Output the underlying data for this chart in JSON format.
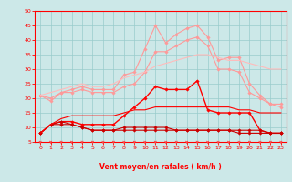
{
  "x": [
    0,
    1,
    2,
    3,
    4,
    5,
    6,
    7,
    8,
    9,
    10,
    11,
    12,
    13,
    14,
    15,
    16,
    17,
    18,
    19,
    20,
    21,
    22,
    23
  ],
  "series": [
    {
      "color": "#ff9999",
      "linewidth": 0.8,
      "marker": "D",
      "markersize": 1.8,
      "values": [
        21,
        20,
        22,
        23,
        24,
        23,
        23,
        23,
        28,
        29,
        37,
        45,
        39,
        42,
        44,
        45,
        41,
        33,
        34,
        34,
        25,
        21,
        18,
        18
      ]
    },
    {
      "color": "#ff9999",
      "linewidth": 0.8,
      "marker": "D",
      "markersize": 1.8,
      "values": [
        21,
        19,
        22,
        22,
        23,
        22,
        22,
        22,
        24,
        25,
        29,
        36,
        36,
        38,
        40,
        41,
        38,
        30,
        30,
        29,
        22,
        20,
        18,
        17
      ]
    },
    {
      "color": "#ffbbbb",
      "linewidth": 0.8,
      "marker": null,
      "markersize": 1.5,
      "values": [
        21,
        22,
        23,
        24,
        25,
        24,
        24,
        25,
        27,
        28,
        29,
        31,
        32,
        33,
        34,
        35,
        35,
        34,
        33,
        33,
        32,
        31,
        30,
        30
      ]
    },
    {
      "color": "#ff0000",
      "linewidth": 1.0,
      "marker": "D",
      "markersize": 1.8,
      "values": [
        8,
        11,
        12,
        12,
        11,
        11,
        11,
        11,
        14,
        17,
        20,
        24,
        23,
        23,
        23,
        26,
        16,
        15,
        15,
        15,
        15,
        9,
        8,
        8
      ]
    },
    {
      "color": "#cc0000",
      "linewidth": 0.8,
      "marker": "D",
      "markersize": 1.8,
      "values": [
        8,
        11,
        11,
        11,
        10,
        9,
        9,
        9,
        10,
        10,
        10,
        10,
        10,
        9,
        9,
        9,
        9,
        9,
        9,
        8,
        8,
        8,
        8,
        8
      ]
    },
    {
      "color": "#cc0000",
      "linewidth": 0.8,
      "marker": "D",
      "markersize": 1.8,
      "values": [
        8,
        11,
        12,
        11,
        10,
        9,
        9,
        9,
        9,
        9,
        9,
        9,
        9,
        9,
        9,
        9,
        9,
        9,
        9,
        9,
        9,
        9,
        8,
        8
      ]
    },
    {
      "color": "#ff0000",
      "linewidth": 0.8,
      "marker": null,
      "markersize": 1.5,
      "values": [
        8,
        11,
        13,
        14,
        14,
        14,
        14,
        14,
        15,
        16,
        16,
        17,
        17,
        17,
        17,
        17,
        17,
        17,
        17,
        16,
        16,
        15,
        15,
        15
      ]
    }
  ],
  "xlabel": "Vent moyen/en rafales ( km/h )",
  "xlim": [
    -0.5,
    23.5
  ],
  "ylim": [
    5,
    50
  ],
  "yticks": [
    5,
    10,
    15,
    20,
    25,
    30,
    35,
    40,
    45,
    50
  ],
  "xticks": [
    0,
    1,
    2,
    3,
    4,
    5,
    6,
    7,
    8,
    9,
    10,
    11,
    12,
    13,
    14,
    15,
    16,
    17,
    18,
    19,
    20,
    21,
    22,
    23
  ],
  "bg_color": "#cce8e8",
  "grid_color": "#99cccc",
  "tick_color": "#ff0000",
  "label_color": "#ff0000",
  "arrow_color": "#ff4444",
  "spine_color": "#ff0000"
}
